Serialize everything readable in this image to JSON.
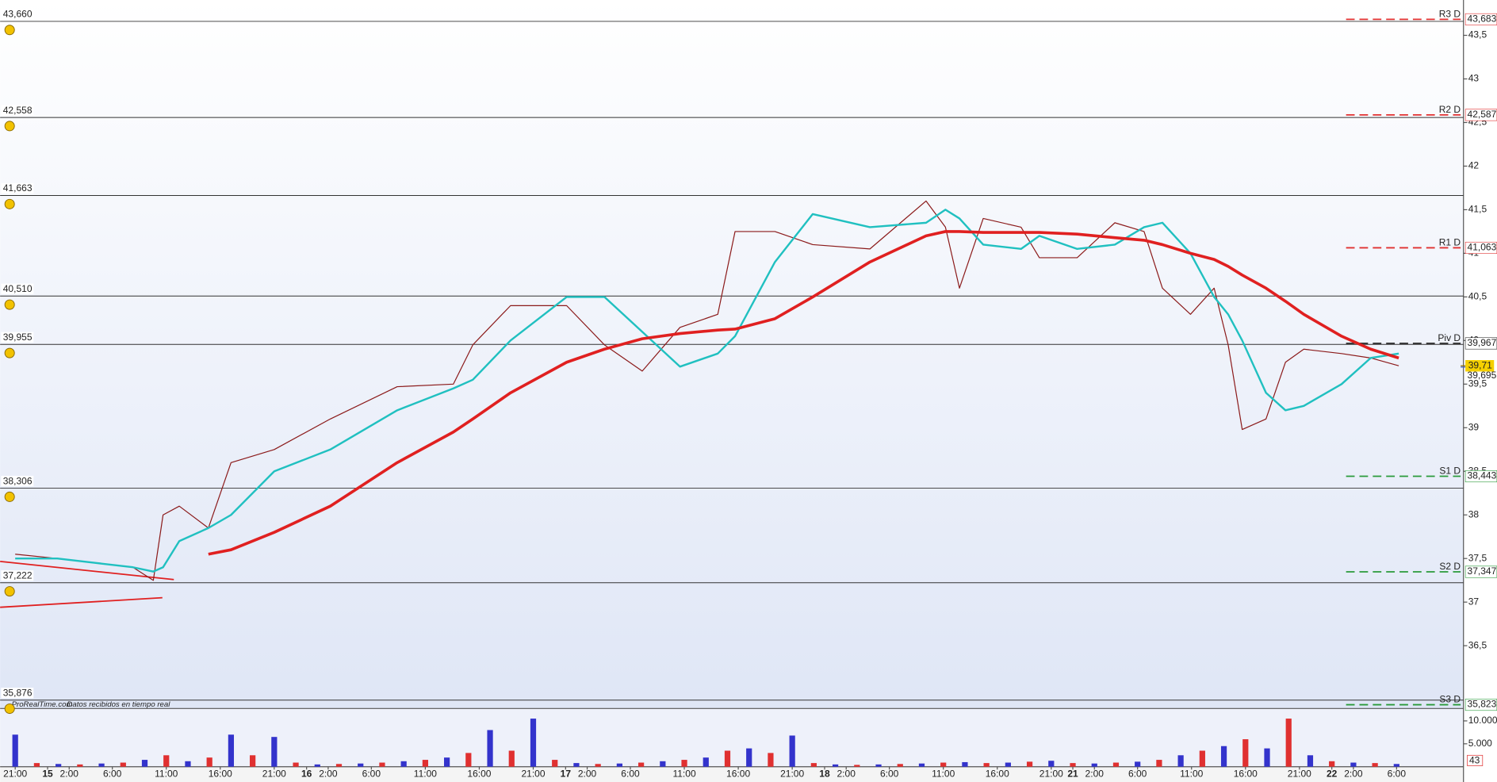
{
  "chart_data": {
    "type": "line",
    "x": [
      0,
      3.9,
      7.4,
      10.9,
      12.8,
      13.7,
      15.2,
      17.9,
      20,
      24,
      29.2,
      35.4,
      40.6,
      42.4,
      45.9,
      51.1,
      54.6,
      58.1,
      61.6,
      65.1,
      66.7,
      70.4,
      73.9,
      79.2,
      84.4,
      86.2,
      87.5,
      89.7,
      93.2,
      94.9,
      98.4,
      101.9,
      104.6,
      106.3,
      108.9,
      111.1,
      112.4,
      113.7,
      115.9,
      117.7,
      119.4,
      122.9,
      125.6,
      128.2
    ],
    "series": [
      {
        "color": "#8b1a1a",
        "line_width": 1,
        "values": [
          37.55,
          37.5,
          37.45,
          37.4,
          37.25,
          38.0,
          38.1,
          37.85,
          38.6,
          38.75,
          39.1,
          39.47,
          39.5,
          39.95,
          40.4,
          40.4,
          39.95,
          39.65,
          40.15,
          40.3,
          41.25,
          41.25,
          41.1,
          41.05,
          41.6,
          41.3,
          40.6,
          41.4,
          41.3,
          40.95,
          40.95,
          41.35,
          41.25,
          40.6,
          40.3,
          40.6,
          39.95,
          38.98,
          39.1,
          39.75,
          39.9,
          39.85,
          39.8,
          39.71
        ]
      },
      {
        "color": "#20c0c0",
        "line_width": 2,
        "values": [
          37.5,
          37.5,
          37.45,
          37.4,
          37.35,
          37.4,
          37.7,
          37.85,
          38.0,
          38.5,
          38.75,
          39.2,
          39.45,
          39.55,
          40.0,
          40.5,
          40.5,
          40.1,
          39.7,
          39.85,
          40.05,
          40.9,
          41.45,
          41.3,
          41.35,
          41.5,
          41.4,
          41.1,
          41.05,
          41.2,
          41.05,
          41.1,
          41.3,
          41.35,
          41.0,
          40.5,
          40.3,
          40.0,
          39.4,
          39.2,
          39.25,
          39.5,
          39.8,
          39.85
        ]
      },
      {
        "color": "#e02020",
        "line_width": 3,
        "values": [
          null,
          null,
          null,
          null,
          null,
          null,
          null,
          37.55,
          37.6,
          37.8,
          38.1,
          38.6,
          38.95,
          39.1,
          39.4,
          39.75,
          39.9,
          40.02,
          40.08,
          40.12,
          40.13,
          40.25,
          40.5,
          40.9,
          41.2,
          41.25,
          41.25,
          41.24,
          41.24,
          41.24,
          41.22,
          41.18,
          41.15,
          41.1,
          41.0,
          40.93,
          40.85,
          40.75,
          40.6,
          40.45,
          40.3,
          40.05,
          39.9,
          39.8
        ]
      }
    ],
    "xlim": [
      -1.4,
      134.2
    ],
    "xticks": [
      {
        "value": 0,
        "label": "21:00"
      },
      {
        "value": 3,
        "label": "15"
      },
      {
        "value": 5,
        "label": "2:00"
      },
      {
        "value": 9,
        "label": "6:00"
      },
      {
        "value": 14,
        "label": "11:00"
      },
      {
        "value": 19,
        "label": "16:00"
      },
      {
        "value": 24,
        "label": "21:00"
      },
      {
        "value": 27,
        "label": "16"
      },
      {
        "value": 29,
        "label": "2:00"
      },
      {
        "value": 33,
        "label": "6:00"
      },
      {
        "value": 38,
        "label": "11:00"
      },
      {
        "value": 43,
        "label": "16:00"
      },
      {
        "value": 48,
        "label": "21:00"
      },
      {
        "value": 51,
        "label": "17"
      },
      {
        "value": 53,
        "label": "2:00"
      },
      {
        "value": 57,
        "label": "6:00"
      },
      {
        "value": 62,
        "label": "11:00"
      },
      {
        "value": 67,
        "label": "16:00"
      },
      {
        "value": 72,
        "label": "21:00"
      },
      {
        "value": 75,
        "label": "18"
      },
      {
        "value": 77,
        "label": "2:00"
      },
      {
        "value": 81,
        "label": "6:00"
      },
      {
        "value": 86,
        "label": "11:00"
      },
      {
        "value": 91,
        "label": "16:00"
      },
      {
        "value": 96,
        "label": "21:00"
      },
      {
        "value": 98,
        "label": "21"
      },
      {
        "value": 100,
        "label": "2:00"
      },
      {
        "value": 104,
        "label": "6:00"
      },
      {
        "value": 109,
        "label": "11:00"
      },
      {
        "value": 114,
        "label": "16:00"
      },
      {
        "value": 119,
        "label": "21:00"
      },
      {
        "value": 122,
        "label": "22"
      },
      {
        "value": 124,
        "label": "2:00"
      },
      {
        "value": 128,
        "label": "6:00"
      }
    ],
    "ylim": [
      35.78,
      43.905
    ],
    "yticks": [
      {
        "value": 36.5,
        "label": "36,5"
      },
      37,
      {
        "value": 37.5,
        "label": "37,5"
      },
      38,
      {
        "value": 38.5,
        "label": "38,5"
      },
      39,
      {
        "value": 39.5,
        "label": "39,5"
      },
      40,
      {
        "value": 40.5,
        "label": "40,5"
      },
      41,
      {
        "value": 41.5,
        "label": "41,5"
      },
      42,
      {
        "value": 42.5,
        "label": "42,5"
      },
      43,
      {
        "value": 43.5,
        "label": "43,5"
      }
    ],
    "levels": [
      {
        "value": 43.66,
        "label": "43,660"
      },
      {
        "value": 42.558,
        "label": "42,558"
      },
      {
        "value": 41.663,
        "label": "41,663"
      },
      {
        "value": 40.51,
        "label": "40,510"
      },
      {
        "value": 39.955,
        "label": "39,955"
      },
      {
        "value": 38.306,
        "label": "38,306"
      },
      {
        "value": 37.222,
        "label": "37,222"
      },
      {
        "value": 35.876,
        "label": "35,876"
      }
    ],
    "pivots": [
      {
        "name": "R3 D",
        "value": 43.683,
        "label": "43,683",
        "color": "#e03030"
      },
      {
        "name": "R2 D",
        "value": 42.587,
        "label": "42,587",
        "color": "#e03030"
      },
      {
        "name": "R1 D",
        "value": 41.063,
        "label": "41,063",
        "color": "#e03030"
      },
      {
        "name": "Piv D",
        "value": 39.967,
        "label": "39,967",
        "color": "#333333"
      },
      {
        "name": "S1 D",
        "value": 38.443,
        "label": "38,443",
        "color": "#2a9a3a"
      },
      {
        "name": "S2 D",
        "value": 37.347,
        "label": "37,347",
        "color": "#2a9a3a"
      },
      {
        "name": "S3 D",
        "value": 35.823,
        "label": "35,823",
        "color": "#2a9a3a"
      }
    ],
    "last_price": {
      "value": 39.71,
      "label": "39,71"
    },
    "second_price": {
      "value": 39.695,
      "label": "39,695"
    },
    "watermark": [
      "ProRealTime.com",
      "Datos recibidos en tiempo real"
    ],
    "volume": {
      "x": [
        0,
        2,
        4,
        6,
        8,
        10,
        12,
        14,
        16,
        18,
        20,
        22,
        24,
        26,
        28,
        30,
        32,
        34,
        36,
        38,
        40,
        42,
        44,
        46,
        48,
        50,
        52,
        54,
        56,
        58,
        60,
        62,
        64,
        66,
        68,
        70,
        72,
        74,
        76,
        78,
        80,
        82,
        84,
        86,
        88,
        90,
        92,
        94,
        96,
        98,
        100,
        102,
        104,
        106,
        108,
        110,
        112,
        114,
        116,
        118,
        120,
        122,
        124,
        126,
        128
      ],
      "values": [
        7000,
        800,
        600,
        500,
        700,
        900,
        1500,
        2500,
        1200,
        2000,
        7000,
        2500,
        6500,
        900,
        500,
        600,
        700,
        900,
        1200,
        1500,
        2000,
        3000,
        8000,
        3500,
        10500,
        1500,
        800,
        600,
        700,
        900,
        1200,
        1500,
        2000,
        3500,
        4000,
        3000,
        6800,
        800,
        500,
        400,
        500,
        600,
        700,
        900,
        1000,
        800,
        900,
        1100,
        1300,
        800,
        700,
        900,
        1100,
        1500,
        2500,
        3500,
        4500,
        6000,
        4000,
        10500,
        2500,
        1200,
        900,
        800,
        600
      ],
      "colors": [
        "#3333cc",
        "#e03030"
      ],
      "ylim": [
        0,
        12708
      ],
      "yticks": [
        {
          "value": 5000,
          "label": "5.000"
        },
        {
          "value": 10000,
          "label": "10.000"
        }
      ],
      "badge": "43"
    }
  }
}
